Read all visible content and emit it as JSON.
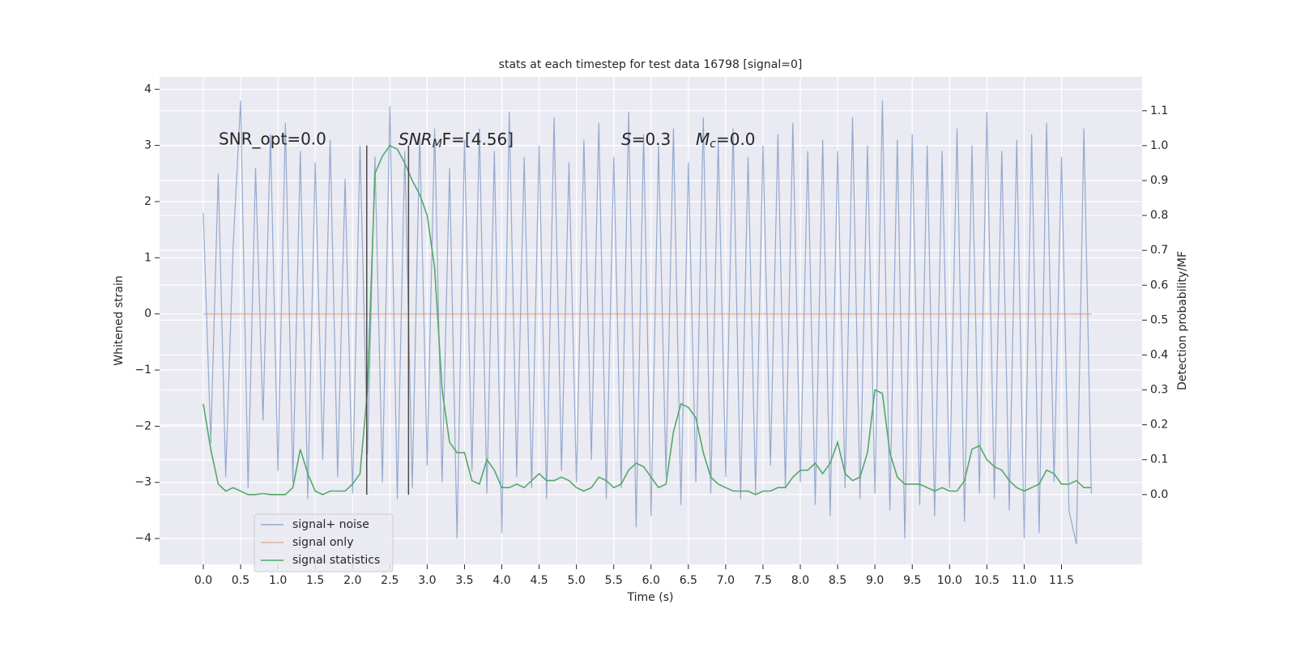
{
  "chart_data": {
    "type": "line",
    "title": "stats at each timestep for test data 16798 [signal=0]",
    "xlabel": "Time (s)",
    "ylabel": "Whitened strain",
    "y2label": "Detection probability/MF",
    "annotations": [
      "SNR_opt=0.0",
      {
        "main": "SNR",
        "sub": "M",
        "tail": "F=[4.56]"
      },
      {
        "main": "S",
        "tail": "=0.3"
      },
      {
        "main": "M",
        "sub": "c",
        "tail": "=0.0"
      }
    ],
    "x": [
      0,
      0.1,
      0.2,
      0.3,
      0.4,
      0.5,
      0.6,
      0.7,
      0.8,
      0.9,
      1,
      1.1,
      1.2,
      1.3,
      1.4,
      1.5,
      1.6,
      1.7,
      1.8,
      1.9,
      2,
      2.1,
      2.2,
      2.3,
      2.4,
      2.5,
      2.6,
      2.7,
      2.8,
      2.9,
      3,
      3.1,
      3.2,
      3.3,
      3.4,
      3.5,
      3.6,
      3.7,
      3.8,
      3.9,
      4,
      4.1,
      4.2,
      4.3,
      4.4,
      4.5,
      4.6,
      4.7,
      4.8,
      4.9,
      5,
      5.1,
      5.2,
      5.3,
      5.4,
      5.5,
      5.6,
      5.7,
      5.8,
      5.9,
      6,
      6.1,
      6.2,
      6.3,
      6.4,
      6.5,
      6.6,
      6.7,
      6.8,
      6.9,
      7,
      7.1,
      7.2,
      7.3,
      7.4,
      7.5,
      7.6,
      7.7,
      7.8,
      7.9,
      8,
      8.1,
      8.2,
      8.3,
      8.4,
      8.5,
      8.6,
      8.7,
      8.8,
      8.9,
      9,
      9.1,
      9.2,
      9.3,
      9.4,
      9.5,
      9.6,
      9.7,
      9.8,
      9.9,
      10,
      10.1,
      10.2,
      10.3,
      10.4,
      10.5,
      10.6,
      10.7,
      10.8,
      10.9,
      11,
      11.1,
      11.2,
      11.3,
      11.4,
      11.5,
      11.6,
      11.7,
      11.8,
      11.9
    ],
    "series": [
      {
        "name": "signal+ noise",
        "color": "#4c72b0",
        "values": [
          1.8,
          -2.3,
          2.5,
          -2.9,
          1.2,
          3.8,
          -3.1,
          2.6,
          -1.9,
          3.2,
          -2.8,
          3.4,
          -3.0,
          2.9,
          -3.3,
          2.7,
          -2.6,
          3.1,
          -2.9,
          2.4,
          -3.2,
          3.0,
          -2.5,
          2.8,
          -3.0,
          3.7,
          -3.3,
          2.9,
          -3.1,
          3.2,
          -2.7,
          3.3,
          -3.0,
          2.6,
          -4.0,
          3.1,
          -2.8,
          3.3,
          -3.2,
          2.9,
          -3.9,
          3.6,
          -2.9,
          2.8,
          -3.1,
          3.0,
          -3.3,
          3.5,
          -2.8,
          2.7,
          -3.0,
          3.1,
          -2.6,
          3.4,
          -3.3,
          2.8,
          -3.1,
          3.6,
          -3.8,
          3.2,
          -3.6,
          3.0,
          -2.9,
          3.3,
          -3.4,
          2.7,
          -3.0,
          3.5,
          -3.2,
          3.1,
          -2.9,
          3.3,
          -3.3,
          2.8,
          -3.2,
          3.0,
          -2.7,
          3.2,
          -3.1,
          3.4,
          -3.0,
          2.9,
          -3.4,
          3.1,
          -3.6,
          2.9,
          -3.1,
          3.5,
          -3.3,
          3.0,
          -3.2,
          3.8,
          -3.5,
          3.1,
          -4.0,
          3.2,
          -3.4,
          3.0,
          -3.6,
          2.9,
          -3.1,
          3.3,
          -3.7,
          3.0,
          -3.2,
          3.6,
          -3.3,
          2.9,
          -3.5,
          3.1,
          -4.0,
          3.2,
          -3.9,
          3.4,
          -3.0,
          2.8,
          -3.5,
          -4.1,
          3.3,
          -3.2
        ]
      },
      {
        "name": "signal only",
        "color": "#dd8452",
        "values": [
          0,
          0,
          0,
          0,
          0,
          0,
          0,
          0,
          0,
          0,
          0,
          0,
          0,
          0,
          0,
          0,
          0,
          0,
          0,
          0,
          0,
          0,
          0,
          0,
          0,
          0,
          0,
          0,
          0,
          0,
          0,
          0,
          0,
          0,
          0,
          0,
          0,
          0,
          0,
          0,
          0,
          0,
          0,
          0,
          0,
          0,
          0,
          0,
          0,
          0,
          0,
          0,
          0,
          0,
          0,
          0,
          0,
          0,
          0,
          0,
          0,
          0,
          0,
          0,
          0,
          0,
          0,
          0,
          0,
          0,
          0,
          0,
          0,
          0,
          0,
          0,
          0,
          0,
          0,
          0,
          0,
          0,
          0,
          0,
          0,
          0,
          0,
          0,
          0,
          0,
          0,
          0,
          0,
          0,
          0,
          0,
          0,
          0,
          0,
          0,
          0,
          0,
          0,
          0,
          0,
          0,
          0,
          0,
          0,
          0,
          0,
          0,
          0,
          0,
          0,
          0,
          0,
          0,
          0,
          0
        ]
      },
      {
        "name": "signal statistics",
        "color": "#55a868",
        "axis": "y2",
        "values": [
          0.26,
          0.13,
          0.03,
          0.01,
          0.02,
          0.01,
          0,
          0,
          0.003,
          0,
          0,
          0,
          0.02,
          0.13,
          0.06,
          0.01,
          0,
          0.01,
          0.01,
          0.01,
          0.03,
          0.06,
          0.3,
          0.92,
          0.97,
          1.0,
          0.99,
          0.95,
          0.9,
          0.86,
          0.8,
          0.65,
          0.3,
          0.15,
          0.12,
          0.12,
          0.04,
          0.03,
          0.1,
          0.07,
          0.02,
          0.02,
          0.03,
          0.02,
          0.04,
          0.06,
          0.04,
          0.04,
          0.05,
          0.04,
          0.02,
          0.01,
          0.02,
          0.05,
          0.04,
          0.02,
          0.03,
          0.07,
          0.09,
          0.08,
          0.05,
          0.02,
          0.03,
          0.18,
          0.26,
          0.25,
          0.22,
          0.12,
          0.05,
          0.03,
          0.02,
          0.01,
          0.01,
          0.01,
          0,
          0.01,
          0.01,
          0.02,
          0.02,
          0.05,
          0.07,
          0.07,
          0.09,
          0.06,
          0.09,
          0.15,
          0.06,
          0.04,
          0.05,
          0.12,
          0.3,
          0.29,
          0.12,
          0.05,
          0.03,
          0.03,
          0.03,
          0.02,
          0.01,
          0.02,
          0.01,
          0.01,
          0.04,
          0.13,
          0.14,
          0.1,
          0.08,
          0.07,
          0.04,
          0.02,
          0.01,
          0.02,
          0.03,
          0.07,
          0.06,
          0.03,
          0.03,
          0.04,
          0.02,
          0.02
        ]
      }
    ],
    "vlines": {
      "x": [
        2.19,
        2.75
      ],
      "ymin": -3.22,
      "ymax": 3.0,
      "color": "#4a4a4a"
    },
    "xlim": [
      -0.586,
      12.58
    ],
    "xticks": [
      {
        "value": 0,
        "label": "0.0"
      },
      0.5,
      {
        "value": 1,
        "label": "1.0"
      },
      1.5,
      {
        "value": 2,
        "label": "2.0"
      },
      2.5,
      {
        "value": 3,
        "label": "3.0"
      },
      3.5,
      {
        "value": 4,
        "label": "4.0"
      },
      4.5,
      {
        "value": 5,
        "label": "5.0"
      },
      5.5,
      {
        "value": 6,
        "label": "6.0"
      },
      6.5,
      {
        "value": 7,
        "label": "7.0"
      },
      7.5,
      {
        "value": 8,
        "label": "8.0"
      },
      8.5,
      {
        "value": 9,
        "label": "9.0"
      },
      9.5,
      {
        "value": 10,
        "label": "10.0"
      },
      10.5,
      {
        "value": 11,
        "label": "11.0"
      },
      11.5
    ],
    "ylim": [
      -4.46,
      4.22
    ],
    "yticks": [
      {
        "value": -4,
        "label": "−4"
      },
      {
        "value": -3,
        "label": "−3"
      },
      {
        "value": -2,
        "label": "−2"
      },
      {
        "value": -1,
        "label": "−1"
      },
      0,
      1,
      2,
      3,
      4
    ],
    "y2lim": [
      -0.2,
      1.197
    ],
    "y2ticks": [
      {
        "value": 0,
        "label": "0.0"
      },
      0.1,
      0.2,
      0.3,
      0.4,
      0.5,
      0.6,
      0.7,
      0.8,
      0.9,
      {
        "value": 1,
        "label": "1.0"
      },
      1.1
    ],
    "grid": true,
    "legend": "lower left"
  }
}
